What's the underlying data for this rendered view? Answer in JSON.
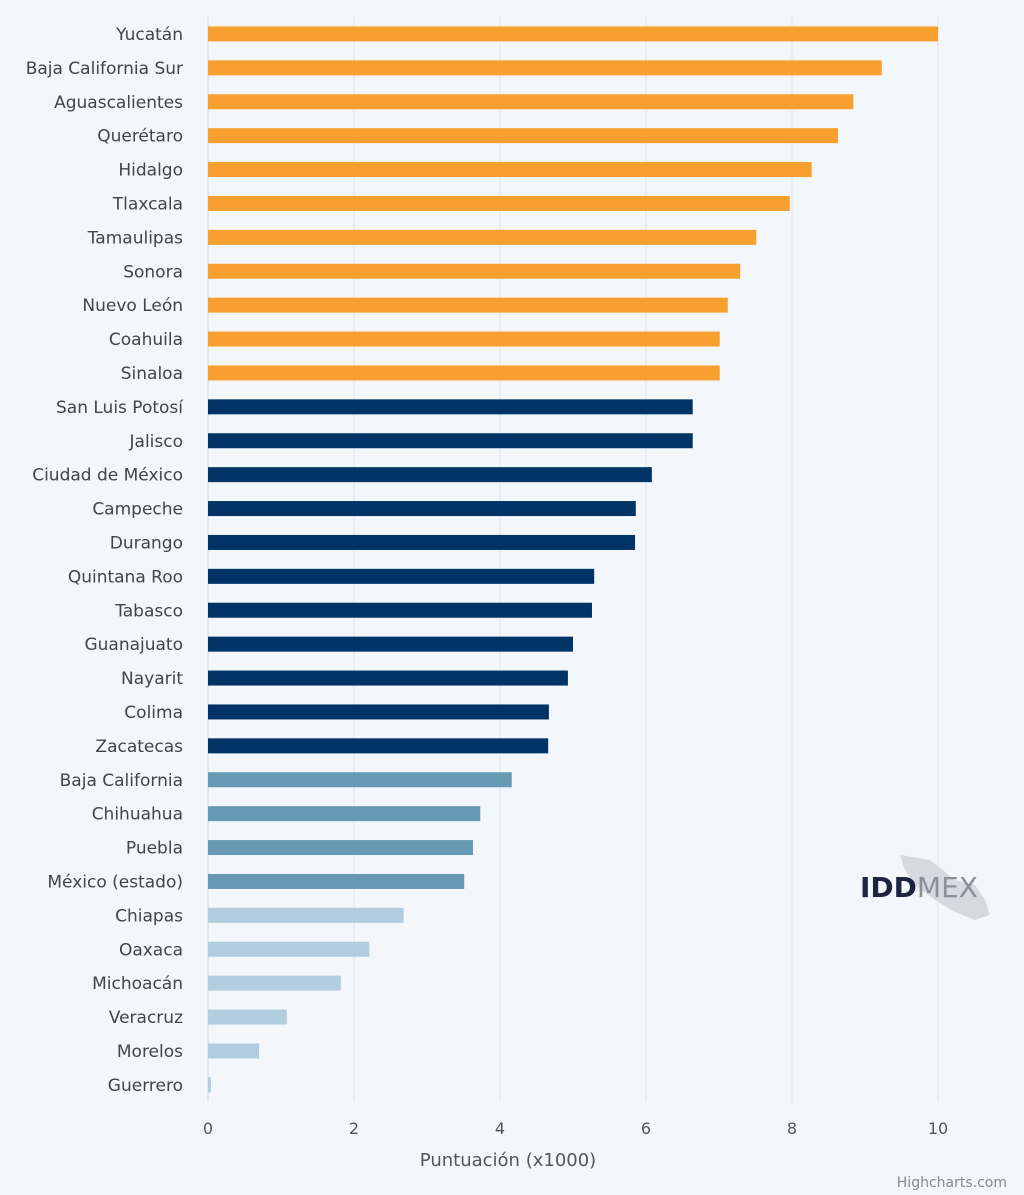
{
  "chart_data": {
    "type": "bar",
    "orientation": "horizontal",
    "title": "",
    "xlabel": "Puntuación (x1000)",
    "ylabel": "",
    "xlim": [
      0,
      10
    ],
    "xticks": [
      0,
      2,
      4,
      6,
      8,
      10
    ],
    "grid": "vertical",
    "categories": [
      "Yucatán",
      "Baja California Sur",
      "Aguascalientes",
      "Querétaro",
      "Hidalgo",
      "Tlaxcala",
      "Tamaulipas",
      "Sonora",
      "Nuevo León",
      "Coahuila",
      "Sinaloa",
      "San Luis Potosí",
      "Jalisco",
      "Ciudad de México",
      "Campeche",
      "Durango",
      "Quintana Roo",
      "Tabasco",
      "Guanajuato",
      "Nayarit",
      "Colima",
      "Zacatecas",
      "Baja California",
      "Chihuahua",
      "Puebla",
      "México (estado)",
      "Chiapas",
      "Oaxaca",
      "Michoacán",
      "Veracruz",
      "Morelos",
      "Guerrero"
    ],
    "values": [
      10.0,
      9.23,
      8.84,
      8.63,
      8.27,
      7.97,
      7.51,
      7.29,
      7.12,
      7.01,
      7.01,
      6.64,
      6.64,
      6.08,
      5.86,
      5.85,
      5.29,
      5.26,
      5.0,
      4.93,
      4.67,
      4.66,
      4.16,
      3.73,
      3.63,
      3.51,
      2.68,
      2.21,
      1.82,
      1.08,
      0.7,
      0.04
    ],
    "color_groups": [
      11,
      11,
      4,
      6
    ],
    "colors": [
      "#f7a030",
      "#003366",
      "#6699b4",
      "#b3cde0"
    ]
  },
  "logo": {
    "text_bold": "IDD",
    "text_light": "MEX"
  },
  "credits": "Highcharts.com"
}
